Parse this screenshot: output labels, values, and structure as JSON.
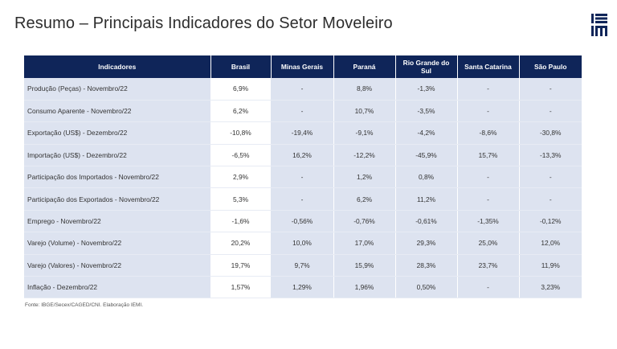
{
  "title": "Resumo – Principais Indicadores do Setor Moveleiro",
  "logo": {
    "name": "IEMI",
    "primary_color": "#0f2559"
  },
  "table": {
    "headers": [
      "Indicadores",
      "Brasil",
      "Minas Gerais",
      "Paraná",
      "Rio Grande do Sul",
      "Santa Catarina",
      "São Paulo"
    ],
    "rows": [
      [
        "Produção (Peças) - Novembro/22",
        "6,9%",
        "-",
        "8,8%",
        "-1,3%",
        "-",
        "-"
      ],
      [
        "Consumo Aparente - Novembro/22",
        "6,2%",
        "-",
        "10,7%",
        "-3,5%",
        "-",
        "-"
      ],
      [
        "Exportação (US$) - Dezembro/22",
        "-10,8%",
        "-19,4%",
        "-9,1%",
        "-4,2%",
        "-8,6%",
        "-30,8%"
      ],
      [
        "Importação (US$) - Dezembro/22",
        "-6,5%",
        "16,2%",
        "-12,2%",
        "-45,9%",
        "15,7%",
        "-13,3%"
      ],
      [
        "Participação dos Importados - Novembro/22",
        "2,9%",
        "-",
        "1,2%",
        "0,8%",
        "-",
        "-"
      ],
      [
        "Participação dos Exportados - Novembro/22",
        "5,3%",
        "-",
        "6,2%",
        "11,2%",
        "-",
        "-"
      ],
      [
        "Emprego - Novembro/22",
        "-1,6%",
        "-0,56%",
        "-0,76%",
        "-0,61%",
        "-1,35%",
        "-0,12%"
      ],
      [
        "Varejo (Volume) - Novembro/22",
        "20,2%",
        "10,0%",
        "17,0%",
        "29,3%",
        "25,0%",
        "12,0%"
      ],
      [
        "Varejo (Valores) - Novembro/22",
        "19,7%",
        "9,7%",
        "15,9%",
        "28,3%",
        "23,7%",
        "11,9%"
      ],
      [
        "Inflação - Dezembro/22",
        "1,57%",
        "1,29%",
        "1,96%",
        "0,50%",
        "-",
        "3,23%"
      ]
    ]
  },
  "source": "Fonte: IBGE/Secex/CAGED/CNI. Elaboração IEMI."
}
